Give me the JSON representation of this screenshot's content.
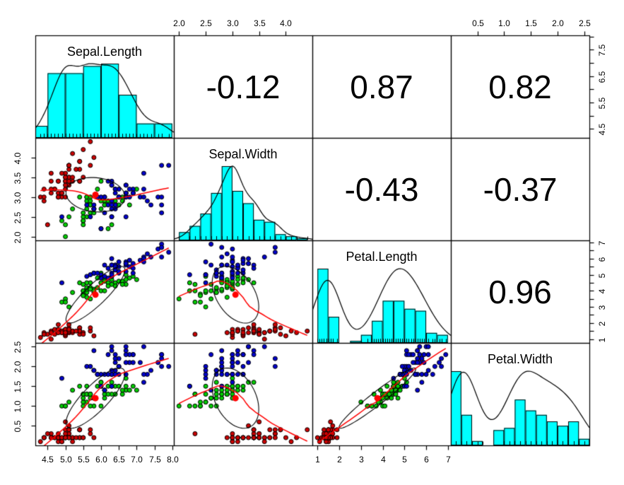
{
  "chart_data": {
    "type": "scatterplot-matrix",
    "title": "",
    "variables": [
      "Sepal.Length",
      "Sepal.Width",
      "Petal.Length",
      "Petal.Width"
    ],
    "ranges": [
      [
        4.156,
        8.044
      ],
      [
        1.904,
        4.496
      ],
      [
        0.764,
        7.136
      ],
      [
        0.004,
        2.596
      ]
    ],
    "histogram_breaks": [
      [
        4.0,
        4.5,
        5.0,
        5.5,
        6.0,
        6.5,
        7.0,
        7.5,
        8.0
      ],
      [
        2.0,
        2.2,
        2.4,
        2.6,
        2.8,
        3.0,
        3.2,
        3.4,
        3.6,
        3.8,
        4.0,
        4.2,
        4.4
      ],
      [
        1.0,
        1.5,
        2.0,
        2.5,
        3.0,
        3.5,
        4.0,
        4.5,
        5.0,
        5.5,
        6.0,
        6.5,
        7.0
      ],
      [
        0.0,
        0.2,
        0.4,
        0.6,
        0.8,
        1.0,
        1.2,
        1.4,
        1.6,
        1.8,
        2.0,
        2.2,
        2.4,
        2.6
      ]
    ],
    "correlations": [
      {
        "row": 0,
        "col": 1,
        "text": "-0.12"
      },
      {
        "row": 0,
        "col": 2,
        "text": "0.87"
      },
      {
        "row": 0,
        "col": 3,
        "text": "0.82"
      },
      {
        "row": 1,
        "col": 2,
        "text": "-0.43"
      },
      {
        "row": 1,
        "col": 3,
        "text": "-0.37"
      },
      {
        "row": 2,
        "col": 3,
        "text": "0.96"
      }
    ],
    "edge_axes": [
      {
        "edge": "top",
        "col": 1,
        "ticks": [
          2.0,
          2.5,
          3.0,
          3.5,
          4.0
        ],
        "labels": [
          "2.0",
          "2.5",
          "3.0",
          "3.5",
          "4.0"
        ]
      },
      {
        "edge": "top",
        "col": 3,
        "ticks": [
          0.5,
          1.0,
          1.5,
          2.0,
          2.5
        ],
        "labels": [
          "0.5",
          "1.0",
          "1.5",
          "2.0",
          "2.5"
        ]
      },
      {
        "edge": "right",
        "row": 0,
        "ticks": [
          4.5,
          5.0,
          5.5,
          6.0,
          6.5,
          7.0,
          7.5,
          8.0
        ],
        "labels": [
          "4.5",
          "",
          "5.5",
          "",
          "6.5",
          "",
          "7.5",
          ""
        ]
      },
      {
        "edge": "right",
        "row": 2,
        "ticks": [
          1,
          1.5,
          2,
          2.5,
          3,
          3.5,
          4,
          4.5,
          5,
          5.5,
          6,
          6.5,
          7
        ],
        "labels": [
          "1",
          "",
          "2",
          "",
          "3",
          "",
          "4",
          "",
          "5",
          "",
          "6",
          "",
          "7"
        ]
      },
      {
        "edge": "left",
        "row": 1,
        "ticks": [
          2.0,
          2.5,
          3.0,
          3.5,
          4.0
        ],
        "labels": [
          "2.0",
          "2.5",
          "3.0",
          "3.5",
          "4.0"
        ]
      },
      {
        "edge": "left",
        "row": 3,
        "ticks": [
          0.5,
          1.0,
          1.5,
          2.0,
          2.5
        ],
        "labels": [
          "0.5",
          "1.0",
          "1.5",
          "2.0",
          "2.5"
        ]
      },
      {
        "edge": "bottom",
        "col": 0,
        "ticks": [
          4.5,
          5.0,
          5.5,
          6.0,
          6.5,
          7.0,
          7.5,
          8.0
        ],
        "labels": [
          "4.5",
          "5.0",
          "5.5",
          "6.0",
          "6.5",
          "7.0",
          "7.5",
          "8.0"
        ]
      },
      {
        "edge": "bottom",
        "col": 2,
        "ticks": [
          1,
          2,
          3,
          4,
          5,
          6,
          7
        ],
        "labels": [
          "1",
          "2",
          "3",
          "4",
          "5",
          "6",
          "7"
        ]
      }
    ],
    "style": {
      "background": "#ffffff",
      "hist_fill": "#00ffff",
      "hist_edge": "#000000",
      "density_line": "#000000",
      "smooth_line": "#ff0000",
      "ellipse_line": "#000000",
      "center_dot": "#ff0000",
      "point_edge": "#000000",
      "text_color": "#000000",
      "rug": "#000000"
    },
    "groups": [
      {
        "name": "red",
        "color": "#cd0000",
        "points": [
          [
            5.1,
            3.5,
            1.4,
            0.2
          ],
          [
            4.9,
            3.0,
            1.4,
            0.2
          ],
          [
            4.7,
            3.2,
            1.3,
            0.2
          ],
          [
            4.6,
            3.1,
            1.5,
            0.2
          ],
          [
            5.0,
            3.6,
            1.4,
            0.2
          ],
          [
            5.4,
            3.9,
            1.7,
            0.4
          ],
          [
            4.6,
            3.4,
            1.4,
            0.3
          ],
          [
            5.0,
            3.4,
            1.5,
            0.2
          ],
          [
            4.4,
            2.9,
            1.4,
            0.2
          ],
          [
            4.9,
            3.1,
            1.5,
            0.1
          ],
          [
            5.4,
            3.7,
            1.5,
            0.2
          ],
          [
            4.8,
            3.4,
            1.6,
            0.2
          ],
          [
            4.8,
            3.0,
            1.4,
            0.1
          ],
          [
            4.3,
            3.0,
            1.1,
            0.1
          ],
          [
            5.8,
            4.0,
            1.2,
            0.2
          ],
          [
            5.7,
            4.4,
            1.5,
            0.4
          ],
          [
            5.4,
            3.9,
            1.3,
            0.4
          ],
          [
            5.1,
            3.5,
            1.4,
            0.3
          ],
          [
            5.7,
            3.8,
            1.7,
            0.3
          ],
          [
            5.1,
            3.8,
            1.5,
            0.3
          ],
          [
            5.4,
            3.4,
            1.7,
            0.2
          ],
          [
            5.1,
            3.7,
            1.5,
            0.4
          ],
          [
            4.6,
            3.6,
            1.0,
            0.2
          ],
          [
            5.1,
            3.3,
            1.7,
            0.5
          ],
          [
            4.8,
            3.4,
            1.9,
            0.2
          ],
          [
            5.0,
            3.0,
            1.6,
            0.2
          ],
          [
            5.0,
            3.4,
            1.6,
            0.4
          ],
          [
            5.2,
            3.5,
            1.5,
            0.2
          ],
          [
            5.2,
            3.4,
            1.4,
            0.2
          ],
          [
            4.7,
            3.2,
            1.6,
            0.2
          ],
          [
            4.8,
            3.1,
            1.6,
            0.2
          ],
          [
            5.4,
            3.4,
            1.5,
            0.4
          ],
          [
            5.2,
            4.1,
            1.5,
            0.1
          ],
          [
            5.5,
            4.2,
            1.4,
            0.2
          ],
          [
            4.9,
            3.1,
            1.5,
            0.2
          ],
          [
            5.0,
            3.2,
            1.2,
            0.2
          ],
          [
            5.5,
            3.5,
            1.3,
            0.2
          ],
          [
            4.9,
            3.6,
            1.4,
            0.1
          ],
          [
            4.4,
            3.0,
            1.3,
            0.2
          ],
          [
            5.1,
            3.4,
            1.5,
            0.2
          ],
          [
            5.0,
            3.5,
            1.3,
            0.3
          ],
          [
            4.5,
            2.3,
            1.3,
            0.3
          ],
          [
            4.4,
            3.2,
            1.3,
            0.2
          ],
          [
            5.0,
            3.5,
            1.6,
            0.6
          ],
          [
            5.1,
            3.8,
            1.9,
            0.4
          ],
          [
            4.8,
            3.0,
            1.4,
            0.3
          ],
          [
            5.1,
            3.8,
            1.6,
            0.2
          ],
          [
            4.6,
            3.2,
            1.4,
            0.2
          ],
          [
            5.3,
            3.7,
            1.5,
            0.2
          ],
          [
            5.0,
            3.3,
            1.4,
            0.2
          ]
        ]
      },
      {
        "name": "green",
        "color": "#00cd00",
        "points": [
          [
            7.0,
            3.2,
            4.7,
            1.4
          ],
          [
            6.4,
            3.2,
            4.5,
            1.5
          ],
          [
            6.9,
            3.1,
            4.9,
            1.5
          ],
          [
            5.5,
            2.3,
            4.0,
            1.3
          ],
          [
            6.5,
            2.8,
            4.6,
            1.5
          ],
          [
            5.7,
            2.8,
            4.5,
            1.3
          ],
          [
            6.3,
            3.3,
            4.7,
            1.6
          ],
          [
            4.9,
            2.4,
            3.3,
            1.0
          ],
          [
            6.6,
            2.9,
            4.6,
            1.3
          ],
          [
            5.2,
            2.7,
            3.9,
            1.4
          ],
          [
            5.0,
            2.0,
            3.5,
            1.0
          ],
          [
            5.9,
            3.0,
            4.2,
            1.5
          ],
          [
            6.0,
            2.2,
            4.0,
            1.0
          ],
          [
            6.1,
            2.9,
            4.7,
            1.4
          ],
          [
            5.6,
            2.9,
            3.6,
            1.3
          ],
          [
            6.7,
            3.1,
            4.4,
            1.4
          ],
          [
            5.6,
            3.0,
            4.5,
            1.5
          ],
          [
            5.8,
            2.7,
            4.1,
            1.0
          ],
          [
            6.2,
            2.2,
            4.5,
            1.5
          ],
          [
            5.6,
            2.5,
            3.9,
            1.1
          ],
          [
            5.9,
            3.2,
            4.8,
            1.8
          ],
          [
            6.1,
            2.8,
            4.0,
            1.3
          ],
          [
            6.3,
            2.5,
            4.9,
            1.5
          ],
          [
            6.1,
            2.8,
            4.7,
            1.2
          ],
          [
            6.4,
            2.9,
            4.3,
            1.3
          ],
          [
            6.6,
            3.0,
            4.4,
            1.4
          ],
          [
            6.8,
            2.8,
            4.8,
            1.4
          ],
          [
            6.7,
            3.0,
            5.0,
            1.7
          ],
          [
            6.0,
            2.9,
            4.5,
            1.5
          ],
          [
            5.7,
            2.6,
            3.5,
            1.0
          ],
          [
            5.5,
            2.4,
            3.8,
            1.1
          ],
          [
            5.5,
            2.4,
            3.7,
            1.0
          ],
          [
            5.8,
            2.7,
            3.9,
            1.2
          ],
          [
            6.0,
            2.7,
            5.1,
            1.6
          ],
          [
            5.4,
            3.0,
            4.5,
            1.5
          ],
          [
            6.0,
            3.4,
            4.5,
            1.6
          ],
          [
            6.7,
            3.1,
            4.7,
            1.5
          ],
          [
            6.3,
            2.3,
            4.4,
            1.3
          ],
          [
            5.6,
            3.0,
            4.1,
            1.3
          ],
          [
            5.5,
            2.5,
            4.0,
            1.3
          ],
          [
            5.5,
            2.6,
            4.4,
            1.2
          ],
          [
            6.1,
            3.0,
            4.6,
            1.4
          ],
          [
            5.8,
            2.6,
            4.0,
            1.2
          ],
          [
            5.0,
            2.3,
            3.3,
            1.0
          ],
          [
            5.6,
            2.7,
            4.2,
            1.3
          ],
          [
            5.7,
            3.0,
            4.2,
            1.2
          ],
          [
            5.7,
            2.9,
            4.2,
            1.3
          ],
          [
            6.2,
            2.9,
            4.3,
            1.3
          ],
          [
            5.1,
            2.5,
            3.0,
            1.1
          ],
          [
            5.7,
            2.8,
            4.1,
            1.3
          ]
        ]
      },
      {
        "name": "blue",
        "color": "#0000cd",
        "points": [
          [
            6.3,
            3.3,
            6.0,
            2.5
          ],
          [
            5.8,
            2.7,
            5.1,
            1.9
          ],
          [
            7.1,
            3.0,
            5.9,
            2.1
          ],
          [
            6.3,
            2.9,
            5.6,
            1.8
          ],
          [
            6.5,
            3.0,
            5.8,
            2.2
          ],
          [
            7.6,
            3.0,
            6.6,
            2.1
          ],
          [
            4.9,
            2.5,
            4.5,
            1.7
          ],
          [
            7.3,
            2.9,
            6.3,
            1.8
          ],
          [
            6.7,
            2.5,
            5.8,
            1.8
          ],
          [
            7.2,
            3.6,
            6.1,
            2.5
          ],
          [
            6.5,
            3.2,
            5.1,
            2.0
          ],
          [
            6.4,
            2.7,
            5.3,
            1.9
          ],
          [
            6.8,
            3.0,
            5.5,
            2.1
          ],
          [
            5.7,
            2.5,
            5.0,
            2.0
          ],
          [
            5.8,
            2.8,
            5.1,
            2.4
          ],
          [
            6.4,
            3.2,
            5.3,
            2.3
          ],
          [
            6.5,
            3.0,
            5.5,
            1.8
          ],
          [
            7.7,
            3.8,
            6.7,
            2.2
          ],
          [
            7.7,
            2.6,
            6.9,
            2.3
          ],
          [
            6.0,
            2.2,
            5.0,
            1.5
          ],
          [
            6.9,
            3.2,
            5.7,
            2.3
          ],
          [
            5.6,
            2.8,
            4.9,
            2.0
          ],
          [
            7.7,
            2.8,
            6.7,
            2.0
          ],
          [
            6.3,
            2.7,
            4.9,
            1.8
          ],
          [
            6.7,
            3.3,
            5.7,
            2.1
          ],
          [
            7.2,
            3.2,
            6.0,
            1.8
          ],
          [
            6.2,
            2.8,
            4.8,
            1.8
          ],
          [
            6.1,
            3.0,
            4.9,
            1.8
          ],
          [
            6.4,
            2.8,
            5.6,
            2.1
          ],
          [
            7.2,
            3.0,
            5.8,
            1.6
          ],
          [
            7.4,
            2.8,
            6.1,
            1.9
          ],
          [
            7.9,
            3.8,
            6.4,
            2.0
          ],
          [
            6.4,
            2.8,
            5.6,
            2.2
          ],
          [
            6.3,
            2.8,
            5.1,
            1.5
          ],
          [
            6.1,
            2.6,
            5.6,
            1.4
          ],
          [
            7.7,
            3.0,
            6.1,
            2.3
          ],
          [
            6.3,
            3.4,
            5.6,
            2.4
          ],
          [
            6.4,
            3.1,
            5.5,
            1.8
          ],
          [
            6.0,
            3.0,
            4.8,
            1.8
          ],
          [
            6.9,
            3.1,
            5.4,
            2.1
          ],
          [
            6.7,
            3.1,
            5.6,
            2.4
          ],
          [
            6.9,
            3.1,
            5.1,
            2.3
          ],
          [
            5.8,
            2.7,
            5.1,
            1.9
          ],
          [
            6.8,
            3.2,
            5.9,
            2.3
          ],
          [
            6.7,
            3.3,
            5.7,
            2.5
          ],
          [
            6.7,
            3.0,
            5.2,
            2.3
          ],
          [
            6.3,
            2.5,
            5.0,
            1.9
          ],
          [
            6.5,
            3.0,
            5.2,
            2.0
          ],
          [
            6.2,
            3.4,
            5.4,
            2.3
          ],
          [
            5.9,
            3.0,
            5.1,
            1.8
          ]
        ]
      }
    ]
  }
}
